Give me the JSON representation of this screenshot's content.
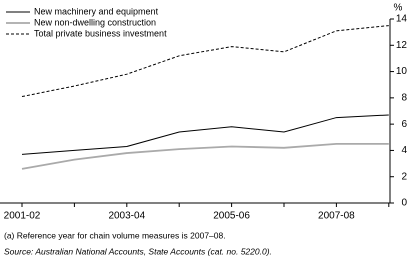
{
  "chart_data": {
    "type": "line",
    "categories": [
      "2001-02",
      null,
      "2003-04",
      null,
      "2005-06",
      null,
      "2007-08",
      null
    ],
    "series": [
      {
        "name": "New machinery and equipment",
        "color": "#000000",
        "dash": false,
        "values": [
          3.7,
          4.0,
          4.3,
          5.4,
          5.8,
          5.4,
          6.5,
          6.7
        ]
      },
      {
        "name": "New non-dwelling construction",
        "color": "#aaaaaa",
        "dash": false,
        "values": [
          2.6,
          3.3,
          3.8,
          4.1,
          4.3,
          4.2,
          4.5,
          4.5
        ]
      },
      {
        "name": "Total private business investment",
        "color": "#000000",
        "dash": true,
        "values": [
          8.1,
          8.9,
          9.8,
          11.2,
          11.9,
          11.5,
          13.1,
          13.5
        ]
      }
    ],
    "y_unit": "%",
    "ylim": [
      0,
      14
    ],
    "yticks": [
      0,
      2,
      4,
      6,
      8,
      10,
      12,
      14
    ],
    "notes": [
      "(a) Reference year for chain volume measures is 2007–08.",
      "Source: Australian National Accounts, State Accounts (cat. no. 5220.0)."
    ]
  }
}
